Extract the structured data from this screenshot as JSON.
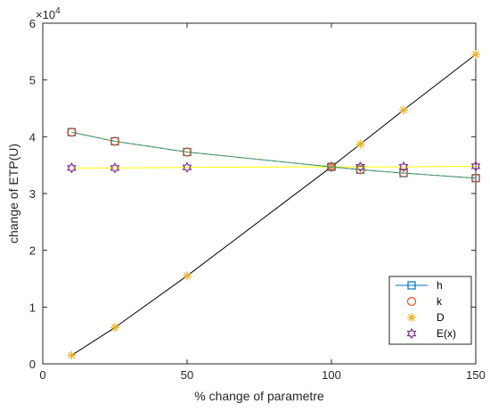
{
  "chart_data": {
    "type": "line",
    "title": "",
    "xlabel": "% change of parametre",
    "ylabel": "change of ETP(U)",
    "y_multiplier_label": "×10",
    "y_multiplier_exponent": "4",
    "xlim": [
      0,
      150
    ],
    "ylim": [
      0,
      6
    ],
    "xticks": [
      0,
      50,
      100,
      150
    ],
    "yticks": [
      0,
      1,
      2,
      3,
      4,
      5,
      6
    ],
    "grid": false,
    "legend_position": "bottom-right",
    "x": [
      10,
      25,
      50,
      100,
      110,
      125,
      150
    ],
    "series": [
      {
        "name": "h",
        "marker": "square",
        "color": "#0072BD",
        "line_color": "#0072BD",
        "values": [
          4.08,
          3.92,
          3.73,
          3.47,
          3.42,
          3.36,
          3.27
        ]
      },
      {
        "name": "k",
        "marker": "circle",
        "color": "#D95319",
        "line_color": "#77AC30",
        "values": [
          4.08,
          3.92,
          3.73,
          3.47,
          3.42,
          3.36,
          3.27
        ]
      },
      {
        "name": "D",
        "marker": "asterisk",
        "color": "#EDB120",
        "line_color": "#000000",
        "values": [
          0.15,
          0.64,
          1.55,
          3.47,
          3.87,
          4.47,
          5.45
        ]
      },
      {
        "name": "E(x)",
        "marker": "hexagram",
        "color": "#7E2F8E",
        "line_color": "#FFFF00",
        "values": [
          3.45,
          3.45,
          3.46,
          3.47,
          3.47,
          3.47,
          3.48
        ]
      }
    ]
  }
}
